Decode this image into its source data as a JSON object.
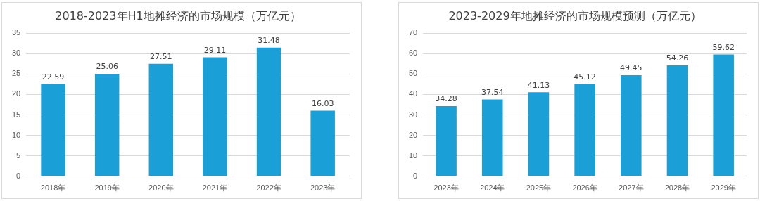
{
  "chart_data": [
    {
      "type": "bar",
      "title": "2018-2023年H1地摊经济的市场规模（万亿元）",
      "categories": [
        "2018年",
        "2019年",
        "2020年",
        "2021年",
        "2022年",
        "2023年"
      ],
      "values": [
        22.59,
        25.06,
        27.51,
        29.11,
        31.48,
        16.03
      ],
      "color": "#1a9fd6",
      "ylim": [
        0,
        35
      ],
      "yticks": [
        0,
        5,
        10,
        15,
        20,
        25,
        30,
        35
      ],
      "grid": "y",
      "data_labels": true
    },
    {
      "type": "bar",
      "title": "2023-2029年地摊经济的市场规模预测（万亿元）",
      "categories": [
        "2023年",
        "2024年",
        "2025年",
        "2026年",
        "2027年",
        "2028年",
        "2029年"
      ],
      "values": [
        34.28,
        37.54,
        41.13,
        45.12,
        49.45,
        54.26,
        59.62
      ],
      "color": "#1a9fd6",
      "ylim": [
        0,
        70
      ],
      "yticks": [
        0,
        10,
        20,
        30,
        40,
        50,
        60,
        70
      ],
      "grid": "y",
      "data_labels": true
    }
  ]
}
